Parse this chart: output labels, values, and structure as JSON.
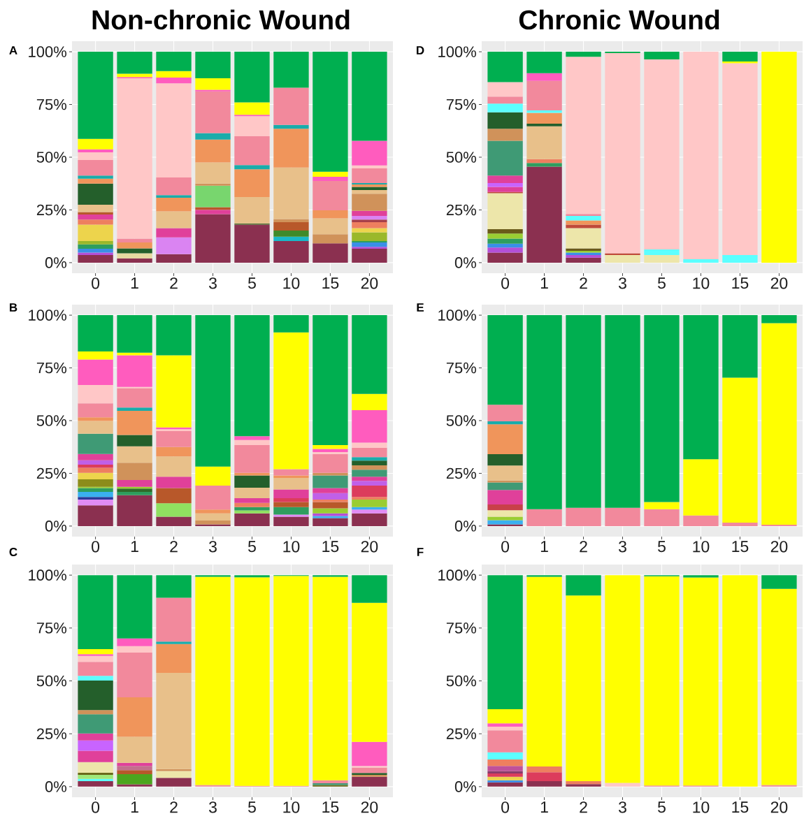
{
  "chart_data": [
    {
      "type": "bar",
      "stacked": true,
      "title": "Non-chronic Wound",
      "annotations": [
        "A"
      ],
      "categories": [
        "0",
        "1",
        "2",
        "3",
        "5",
        "10",
        "15",
        "20"
      ],
      "ylim": [
        -5,
        105
      ],
      "yticks": [
        {
          "value": 0,
          "label": "0%"
        },
        {
          "value": 25,
          "label": "25%"
        },
        {
          "value": 50,
          "label": "50%"
        },
        {
          "value": 75,
          "label": "75%"
        },
        {
          "value": 100,
          "label": "100%"
        }
      ],
      "grid": true,
      "series": [
        {
          "color": "#8b3050",
          "values": [
            3.6,
            2.0,
            4.0,
            23.0,
            18.0,
            10.2,
            9.2,
            6.6
          ]
        },
        {
          "color": "#b44fd8",
          "values": [
            1.2,
            null,
            null,
            null,
            null,
            null,
            null,
            0.9
          ]
        },
        {
          "color": "#3a8fe8",
          "values": [
            1.8,
            null,
            null,
            null,
            null,
            null,
            null,
            2.1
          ]
        },
        {
          "color": "#1ab8c8",
          "values": [
            null,
            null,
            null,
            null,
            null,
            2.1,
            null,
            null
          ]
        },
        {
          "color": "#2e9e5e",
          "values": [
            2.1,
            null,
            null,
            null,
            null,
            null,
            null,
            0.6
          ]
        },
        {
          "color": "#3f8a2a",
          "values": [
            null,
            null,
            null,
            null,
            null,
            2.9,
            null,
            null
          ]
        },
        {
          "color": "#9ab82a",
          "values": [
            1.5,
            null,
            null,
            null,
            null,
            null,
            null,
            4.2
          ]
        },
        {
          "color": "#edd44c",
          "values": [
            7.8,
            null,
            null,
            null,
            null,
            null,
            null,
            2.0
          ]
        },
        {
          "color": "#e6d9a0",
          "values": [
            null,
            2.4,
            null,
            null,
            null,
            null,
            null,
            null
          ]
        },
        {
          "color": "#ee7f5f",
          "values": [
            2.4,
            null,
            null,
            null,
            null,
            null,
            null,
            2.8
          ]
        },
        {
          "color": "#a8404a",
          "values": [
            null,
            null,
            null,
            null,
            null,
            null,
            null,
            1.2
          ]
        },
        {
          "color": "#da84f2",
          "values": [
            null,
            null,
            8.0,
            null,
            null,
            null,
            null,
            1.8
          ]
        },
        {
          "color": "#e0409a",
          "values": [
            2.4,
            null,
            4.4,
            2.1,
            null,
            null,
            null,
            2.4
          ]
        },
        {
          "color": "#4e6a2a",
          "values": [
            null,
            null,
            null,
            null,
            0.6,
            null,
            null,
            null
          ]
        },
        {
          "color": "#b8582a",
          "values": [
            1.2,
            null,
            null,
            1.2,
            null,
            4.0,
            null,
            null
          ]
        },
        {
          "color": "#78d66e",
          "values": [
            null,
            null,
            null,
            10.2,
            null,
            null,
            null,
            null
          ]
        },
        {
          "color": "#d0925a",
          "values": [
            null,
            null,
            null,
            1.0,
            null,
            1.5,
            4.3,
            8.1
          ]
        },
        {
          "color": "#e8c08a",
          "values": [
            3.5,
            null,
            7.9,
            10.0,
            12.5,
            24.4,
            7.5,
            1.7
          ]
        },
        {
          "color": "#245f2b",
          "values": [
            10.0,
            2.4,
            null,
            null,
            null,
            null,
            null,
            1.5
          ]
        },
        {
          "color": "#f0955b",
          "values": [
            2.3,
            2.8,
            6.5,
            10.9,
            13.2,
            18.4,
            3.8,
            1.2
          ]
        },
        {
          "color": "#1aacaa",
          "values": [
            1.5,
            null,
            1.2,
            3.0,
            2.0,
            1.8,
            null,
            0.6
          ]
        },
        {
          "color": "#f2899c",
          "values": [
            7.4,
            1.8,
            8.4,
            19.8,
            13.6,
            17.7,
            13.9,
            7.0
          ]
        },
        {
          "color": "#ffc7c7",
          "values": [
            3.6,
            76.0,
            44.6,
            null,
            9.6,
            null,
            null,
            1.4
          ]
        },
        {
          "color": "#ff5cbe",
          "values": [
            1.4,
            0.6,
            2.8,
            0.8,
            0.6,
            null,
            2.0,
            11.7
          ]
        },
        {
          "color": "#ffff00",
          "values": [
            5.0,
            1.6,
            3.0,
            5.4,
            5.9,
            null,
            2.4,
            null
          ]
        },
        {
          "color": "#00af50",
          "values": [
            41.3,
            10.4,
            9.2,
            12.6,
            24.0,
            17.0,
            56.9,
            42.2
          ]
        }
      ]
    },
    {
      "type": "bar",
      "stacked": true,
      "annotations": [
        "B"
      ],
      "categories": [
        "0",
        "1",
        "2",
        "3",
        "5",
        "10",
        "15",
        "20"
      ],
      "ylim": [
        -5,
        105
      ],
      "yticks": [
        {
          "value": 0,
          "label": "0%"
        },
        {
          "value": 25,
          "label": "25%"
        },
        {
          "value": 50,
          "label": "50%"
        },
        {
          "value": 75,
          "label": "75%"
        },
        {
          "value": 100,
          "label": "100%"
        }
      ],
      "grid": true,
      "series": [
        {
          "color": "#8b3050",
          "values": [
            9.8,
            14.6,
            4.4,
            0.8,
            6.0,
            4.4,
            3.8,
            6.0
          ]
        },
        {
          "color": "#e18cf5",
          "values": [
            2.8,
            null,
            null,
            null,
            null,
            1.0,
            null,
            1.8
          ]
        },
        {
          "color": "#2b3a9a",
          "values": [
            1.2,
            null,
            null,
            null,
            null,
            null,
            null,
            null
          ]
        },
        {
          "color": "#3ab0f0",
          "values": [
            2.4,
            null,
            null,
            null,
            null,
            null,
            1.0,
            1.2
          ]
        },
        {
          "color": "#b44fd8",
          "values": [
            null,
            null,
            null,
            null,
            null,
            null,
            1.2,
            null
          ]
        },
        {
          "color": "#90e060",
          "values": [
            null,
            null,
            6.4,
            null,
            1.4,
            null,
            null,
            null
          ]
        },
        {
          "color": "#2e9e5e",
          "values": [
            1.8,
            1.6,
            null,
            null,
            1.6,
            3.6,
            null,
            null
          ]
        },
        {
          "color": "#2e6b2a",
          "values": [
            null,
            1.6,
            null,
            null,
            null,
            null,
            null,
            null
          ]
        },
        {
          "color": "#9acd32",
          "values": [
            0.6,
            0.8,
            null,
            null,
            null,
            null,
            2.4,
            3.6
          ]
        },
        {
          "color": "#8c8c1a",
          "values": [
            3.6,
            null,
            null,
            null,
            null,
            null,
            null,
            null
          ]
        },
        {
          "color": "#edd44c",
          "values": [
            3.0,
            null,
            null,
            null,
            null,
            null,
            null,
            null
          ]
        },
        {
          "color": "#b8582a",
          "values": [
            null,
            null,
            7.2,
            null,
            null,
            2.4,
            3.0,
            null
          ]
        },
        {
          "color": "#ee7f5f",
          "values": [
            2.4,
            null,
            null,
            null,
            2.0,
            null,
            1.2,
            1.2
          ]
        },
        {
          "color": "#dc3c5c",
          "values": [
            1.5,
            null,
            null,
            null,
            null,
            1.8,
            null,
            5.4
          ]
        },
        {
          "color": "#c060e8",
          "values": [
            2.1,
            null,
            null,
            null,
            null,
            null,
            3.0,
            2.2
          ]
        },
        {
          "color": "#e0409a",
          "values": [
            3.0,
            3.2,
            5.4,
            null,
            2.2,
            4.2,
            2.4,
            2.0
          ]
        },
        {
          "color": "#3f9a75",
          "values": [
            9.6,
            null,
            null,
            null,
            null,
            null,
            6.0,
            3.3
          ]
        },
        {
          "color": "#d0925a",
          "values": [
            null,
            8.2,
            null,
            1.8,
            null,
            null,
            1.2,
            2.1
          ]
        },
        {
          "color": "#e8c08a",
          "values": [
            6.0,
            7.8,
            9.6,
            3.4,
            5.0,
            5.4,
            null,
            null
          ]
        },
        {
          "color": "#245f2b",
          "values": [
            null,
            5.4,
            null,
            null,
            5.8,
            null,
            null,
            2.2
          ]
        },
        {
          "color": "#f0955b",
          "values": [
            1.8,
            11.4,
            4.5,
            1.8,
            1.2,
            1.2,
            null,
            null
          ]
        },
        {
          "color": "#1aacaa",
          "values": [
            null,
            1.6,
            null,
            null,
            null,
            null,
            null,
            1.7
          ]
        },
        {
          "color": "#f2899c",
          "values": [
            6.6,
            9.2,
            7.5,
            11.4,
            13.2,
            3.0,
            9.0,
            4.5
          ]
        },
        {
          "color": "#ffc7c7",
          "values": [
            8.7,
            0.6,
            0.9,
            null,
            2.4,
            null,
            0.9,
            2.4
          ]
        },
        {
          "color": "#ff5cbe",
          "values": [
            12.1,
            15.0,
            0.9,
            null,
            1.8,
            null,
            1.5,
            15.4
          ]
        },
        {
          "color": "#ffff00",
          "values": [
            3.8,
            1.2,
            34.2,
            9.0,
            null,
            64.8,
            1.8,
            7.7
          ]
        },
        {
          "color": "#00af50",
          "values": [
            17.2,
            17.8,
            19.0,
            71.8,
            57.4,
            8.2,
            61.6,
            37.3
          ]
        }
      ]
    },
    {
      "type": "bar",
      "stacked": true,
      "annotations": [
        "C"
      ],
      "categories": [
        "0",
        "1",
        "2",
        "3",
        "5",
        "10",
        "15",
        "20"
      ],
      "ylim": [
        -5,
        105
      ],
      "yticks": [
        {
          "value": 0,
          "label": "0%"
        },
        {
          "value": 25,
          "label": "25%"
        },
        {
          "value": 50,
          "label": "50%"
        },
        {
          "value": 75,
          "label": "75%"
        },
        {
          "value": 100,
          "label": "100%"
        }
      ],
      "grid": true,
      "series": [
        {
          "color": "#8b3050",
          "values": [
            2.6,
            1.1,
            4.2,
            null,
            null,
            null,
            null,
            4.7
          ]
        },
        {
          "color": "#5cffff",
          "values": [
            1.1,
            null,
            null,
            null,
            null,
            null,
            null,
            null
          ]
        },
        {
          "color": "#4ca61e",
          "values": [
            null,
            4.8,
            null,
            null,
            null,
            null,
            null,
            null
          ]
        },
        {
          "color": "#a0e878",
          "values": [
            1.9,
            null,
            null,
            null,
            null,
            null,
            null,
            null
          ]
        },
        {
          "color": "#6a6a1a",
          "values": [
            1.0,
            null,
            null,
            null,
            null,
            null,
            0.8,
            null
          ]
        },
        {
          "color": "#ede6aa",
          "values": [
            5.0,
            null,
            3.2,
            null,
            null,
            null,
            null,
            null
          ]
        },
        {
          "color": "#b8582a",
          "values": [
            null,
            1.9,
            null,
            null,
            null,
            null,
            null,
            null
          ]
        },
        {
          "color": "#c46e8e",
          "values": [
            null,
            2.0,
            null,
            null,
            null,
            null,
            null,
            null
          ]
        },
        {
          "color": "#e0409a",
          "values": [
            5.4,
            null,
            null,
            null,
            null,
            null,
            null,
            null
          ]
        },
        {
          "color": "#c864ff",
          "values": [
            4.8,
            null,
            null,
            null,
            null,
            null,
            null,
            null
          ]
        },
        {
          "color": "#e0409a",
          "values": [
            3.3,
            1.5,
            null,
            null,
            null,
            null,
            null,
            null
          ]
        },
        {
          "color": "#3f9a75",
          "values": [
            9.1,
            null,
            null,
            null,
            null,
            null,
            0.8,
            null
          ]
        },
        {
          "color": "#d0925a",
          "values": [
            2.0,
            null,
            0.9,
            null,
            null,
            null,
            null,
            0.9
          ]
        },
        {
          "color": "#e8c08a",
          "values": [
            null,
            12.3,
            45.5,
            null,
            null,
            null,
            null,
            null
          ]
        },
        {
          "color": "#245f2b",
          "values": [
            14.0,
            null,
            null,
            null,
            null,
            null,
            null,
            0.9
          ]
        },
        {
          "color": "#f0955b",
          "values": [
            null,
            18.6,
            13.6,
            null,
            null,
            null,
            null,
            null
          ]
        },
        {
          "color": "#1aacaa",
          "values": [
            null,
            null,
            1.2,
            null,
            null,
            null,
            null,
            null
          ]
        },
        {
          "color": "#5cffff",
          "values": [
            2.2,
            null,
            null,
            null,
            null,
            null,
            null,
            null
          ]
        },
        {
          "color": "#f2899c",
          "values": [
            6.6,
            21.2,
            20.7,
            0.8,
            0.4,
            0.4,
            1.4,
            2.5
          ]
        },
        {
          "color": "#ffc7c7",
          "values": [
            2.8,
            3.0,
            null,
            null,
            null,
            null,
            null,
            0.8
          ]
        },
        {
          "color": "#ff5cbe",
          "values": [
            0.8,
            3.7,
            null,
            null,
            null,
            null,
            null,
            11.4
          ]
        },
        {
          "color": "#ffff00",
          "values": [
            2.4,
            null,
            null,
            98.4,
            98.6,
            99.2,
            96.2,
            65.7
          ]
        },
        {
          "color": "#00af50",
          "values": [
            35.0,
            29.9,
            10.7,
            0.8,
            1.0,
            0.4,
            0.8,
            13.1
          ]
        }
      ]
    },
    {
      "type": "bar",
      "stacked": true,
      "title": "Chronic Wound",
      "annotations": [
        "D"
      ],
      "categories": [
        "0",
        "1",
        "2",
        "3",
        "5",
        "10",
        "15",
        "20"
      ],
      "ylim": [
        -5,
        105
      ],
      "yticks": [
        {
          "value": 0,
          "label": "0%"
        },
        {
          "value": 25,
          "label": "25%"
        },
        {
          "value": 50,
          "label": "50%"
        },
        {
          "value": 75,
          "label": "75%"
        },
        {
          "value": 100,
          "label": "100%"
        }
      ],
      "grid": true,
      "series": [
        {
          "color": "#8b3050",
          "values": [
            4.8,
            45.5,
            2.4,
            null,
            null,
            null,
            null,
            null
          ]
        },
        {
          "color": "#b44fd8",
          "values": [
            2.4,
            null,
            1.2,
            null,
            null,
            null,
            null,
            null
          ]
        },
        {
          "color": "#3a8fe8",
          "values": [
            1.8,
            null,
            1.2,
            null,
            null,
            null,
            null,
            null
          ]
        },
        {
          "color": "#2e9e5e",
          "values": [
            2.4,
            1.8,
            null,
            null,
            null,
            null,
            null,
            null
          ]
        },
        {
          "color": "#ee7f5f",
          "values": [
            null,
            1.8,
            null,
            null,
            null,
            null,
            null,
            null
          ]
        },
        {
          "color": "#9acd32",
          "values": [
            2.4,
            null,
            0.8,
            null,
            null,
            null,
            null,
            null
          ]
        },
        {
          "color": "#6a5a1a",
          "values": [
            2.1,
            null,
            1.2,
            null,
            null,
            null,
            null,
            null
          ]
        },
        {
          "color": "#ede6aa",
          "values": [
            17.0,
            null,
            9.6,
            3.6,
            3.6,
            null,
            null,
            null
          ]
        },
        {
          "color": "#c04a3a",
          "values": [
            0.6,
            null,
            1.6,
            0.8,
            null,
            null,
            null,
            null
          ]
        },
        {
          "color": "#e0409a",
          "values": [
            2.4,
            null,
            null,
            null,
            null,
            null,
            null,
            null
          ]
        },
        {
          "color": "#c864ff",
          "values": [
            1.8,
            null,
            null,
            null,
            null,
            null,
            null,
            null
          ]
        },
        {
          "color": "#e0409a",
          "values": [
            3.6,
            null,
            null,
            null,
            null,
            null,
            null,
            null
          ]
        },
        {
          "color": "#3f9a75",
          "values": [
            16.5,
            null,
            null,
            null,
            null,
            null,
            null,
            null
          ]
        },
        {
          "color": "#e8c08a",
          "values": [
            null,
            15.6,
            null,
            null,
            null,
            null,
            null,
            null
          ]
        },
        {
          "color": "#d0925a",
          "values": [
            5.7,
            null,
            null,
            null,
            null,
            null,
            null,
            null
          ]
        },
        {
          "color": "#245f2b",
          "values": [
            7.8,
            1.2,
            null,
            null,
            null,
            null,
            null,
            null
          ]
        },
        {
          "color": "#f0955b",
          "values": [
            null,
            5.1,
            2.0,
            null,
            null,
            null,
            null,
            null
          ]
        },
        {
          "color": "#5cffff",
          "values": [
            4.1,
            1.2,
            2.2,
            null,
            2.7,
            1.6,
            3.6,
            null
          ]
        },
        {
          "color": "#f2899c",
          "values": [
            3.3,
            14.0,
            0.9,
            null,
            null,
            null,
            null,
            null
          ]
        },
        {
          "color": "#ffc7c7",
          "values": [
            6.9,
            null,
            74.5,
            95.0,
            90.1,
            98.4,
            91.0,
            null
          ]
        },
        {
          "color": "#ff5cbe",
          "values": [
            null,
            3.6,
            null,
            null,
            null,
            null,
            null,
            null
          ]
        },
        {
          "color": "#ffff00",
          "values": [
            null,
            null,
            null,
            null,
            null,
            null,
            0.8,
            100
          ]
        },
        {
          "color": "#00af50",
          "values": [
            14.4,
            10.2,
            2.4,
            0.6,
            3.6,
            null,
            4.6,
            null
          ]
        }
      ]
    },
    {
      "type": "bar",
      "stacked": true,
      "annotations": [
        "E"
      ],
      "categories": [
        "0",
        "1",
        "2",
        "3",
        "5",
        "10",
        "15",
        "20"
      ],
      "ylim": [
        -5,
        105
      ],
      "yticks": [
        {
          "value": 0,
          "label": "0%"
        },
        {
          "value": 25,
          "label": "25%"
        },
        {
          "value": 50,
          "label": "50%"
        },
        {
          "value": 75,
          "label": "75%"
        },
        {
          "value": 100,
          "label": "100%"
        }
      ],
      "grid": true,
      "series": [
        {
          "color": "#8b3050",
          "values": [
            0.8,
            null,
            null,
            null,
            null,
            null,
            null,
            null
          ]
        },
        {
          "color": "#3ab0f0",
          "values": [
            2.0,
            null,
            null,
            null,
            null,
            null,
            null,
            null
          ]
        },
        {
          "color": "#9acd32",
          "values": [
            1.6,
            null,
            null,
            null,
            null,
            null,
            null,
            null
          ]
        },
        {
          "color": "#ede6aa",
          "values": [
            3.1,
            null,
            null,
            null,
            null,
            null,
            null,
            null
          ]
        },
        {
          "color": "#c8404a",
          "values": [
            2.7,
            null,
            null,
            null,
            null,
            null,
            null,
            null
          ]
        },
        {
          "color": "#e0409a",
          "values": [
            6.9,
            null,
            null,
            null,
            null,
            null,
            null,
            null
          ]
        },
        {
          "color": "#3f9a75",
          "values": [
            3.6,
            null,
            null,
            null,
            null,
            null,
            null,
            null
          ]
        },
        {
          "color": "#d0925a",
          "values": [
            0.9,
            null,
            null,
            null,
            null,
            null,
            null,
            null
          ]
        },
        {
          "color": "#e8c08a",
          "values": [
            7.1,
            null,
            null,
            null,
            null,
            null,
            null,
            null
          ]
        },
        {
          "color": "#245f2b",
          "values": [
            5.4,
            null,
            null,
            null,
            null,
            null,
            null,
            null
          ]
        },
        {
          "color": "#f0955b",
          "values": [
            14.2,
            null,
            null,
            null,
            null,
            null,
            null,
            null
          ]
        },
        {
          "color": "#1aacaa",
          "values": [
            1.4,
            null,
            null,
            null,
            null,
            null,
            null,
            null
          ]
        },
        {
          "color": "#f2899c",
          "values": [
            7.8,
            8.0,
            8.7,
            8.7,
            8.0,
            5.0,
            1.6,
            0.6
          ]
        },
        {
          "color": "#ffff00",
          "values": [
            null,
            null,
            null,
            null,
            3.4,
            26.7,
            68.8,
            95.6
          ]
        },
        {
          "color": "#00af50",
          "values": [
            42.5,
            92.0,
            91.3,
            91.3,
            88.6,
            68.3,
            29.6,
            3.8
          ]
        }
      ]
    },
    {
      "type": "bar",
      "stacked": true,
      "annotations": [
        "F"
      ],
      "categories": [
        "0",
        "1",
        "2",
        "3",
        "5",
        "10",
        "15",
        "20"
      ],
      "ylim": [
        -5,
        105
      ],
      "yticks": [
        {
          "value": 0,
          "label": "0%"
        },
        {
          "value": 25,
          "label": "25%"
        },
        {
          "value": 50,
          "label": "50%"
        },
        {
          "value": 75,
          "label": "75%"
        },
        {
          "value": 100,
          "label": "100%"
        }
      ],
      "grid": true,
      "series": [
        {
          "color": "#8b3050",
          "values": [
            2.0,
            2.6,
            1.2,
            null,
            null,
            null,
            null,
            null
          ]
        },
        {
          "color": "#3a8fe8",
          "values": [
            1.0,
            null,
            null,
            null,
            null,
            null,
            null,
            null
          ]
        },
        {
          "color": "#edd44c",
          "values": [
            1.7,
            null,
            null,
            null,
            null,
            null,
            null,
            null
          ]
        },
        {
          "color": "#dc3c5c",
          "values": [
            1.5,
            4.2,
            null,
            null,
            null,
            null,
            null,
            null
          ]
        },
        {
          "color": "#8a3a6a",
          "values": [
            1.2,
            null,
            null,
            null,
            null,
            null,
            null,
            null
          ]
        },
        {
          "color": "#c0509a",
          "values": [
            2.4,
            null,
            null,
            null,
            null,
            null,
            null,
            null
          ]
        },
        {
          "color": "#ee7f5f",
          "values": [
            3.0,
            2.7,
            1.4,
            null,
            null,
            null,
            null,
            null
          ]
        },
        {
          "color": "#5cffff",
          "values": [
            3.4,
            null,
            null,
            null,
            null,
            null,
            null,
            null
          ]
        },
        {
          "color": "#f2899c",
          "values": [
            10.4,
            null,
            null,
            null,
            0.5,
            0.5,
            null,
            0.8
          ]
        },
        {
          "color": "#ffc7c7",
          "values": [
            1.8,
            null,
            null,
            1.8,
            null,
            null,
            null,
            null
          ]
        },
        {
          "color": "#ff5cbe",
          "values": [
            1.5,
            null,
            null,
            null,
            null,
            null,
            null,
            null
          ]
        },
        {
          "color": "#ffff00",
          "values": [
            6.7,
            89.7,
            87.8,
            98.2,
            99.0,
            98.4,
            100,
            92.7
          ]
        },
        {
          "color": "#00af50",
          "values": [
            63.4,
            0.8,
            9.6,
            null,
            0.5,
            1.1,
            null,
            6.5
          ]
        }
      ]
    }
  ]
}
